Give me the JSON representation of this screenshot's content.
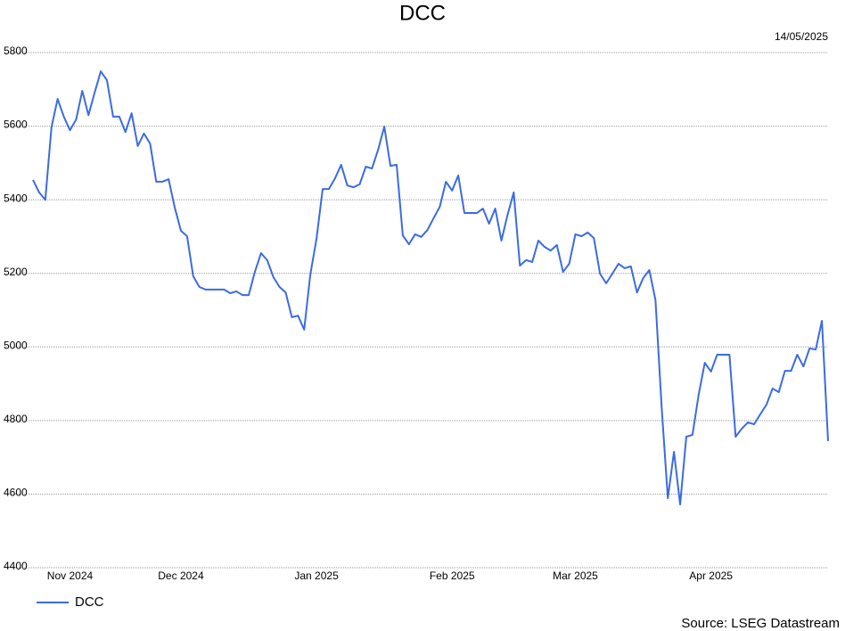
{
  "chart_data": {
    "type": "line",
    "title": "DCC",
    "date": "14/05/2025",
    "source": "Source: LSEG Datastream",
    "categories": [
      null,
      null,
      null,
      null,
      null,
      null,
      "Nov 2024",
      null,
      null,
      null,
      null,
      null,
      null,
      null,
      null,
      null,
      null,
      null,
      null,
      null,
      null,
      null,
      null,
      null,
      "Dec 2024",
      null,
      null,
      null,
      null,
      null,
      null,
      null,
      null,
      null,
      null,
      null,
      null,
      null,
      null,
      null,
      null,
      null,
      null,
      null,
      null,
      null,
      "Jan 2025",
      null,
      null,
      null,
      null,
      null,
      null,
      null,
      null,
      null,
      null,
      null,
      null,
      null,
      null,
      null,
      null,
      null,
      null,
      null,
      null,
      null,
      "Feb 2025",
      null,
      null,
      null,
      null,
      null,
      null,
      null,
      null,
      null,
      null,
      null,
      null,
      null,
      null,
      null,
      null,
      null,
      null,
      null,
      "Mar 2025",
      null,
      null,
      null,
      null,
      null,
      null,
      null,
      null,
      null,
      null,
      null,
      null,
      null,
      null,
      null,
      null,
      null,
      null,
      null,
      null,
      null,
      "Apr 2025",
      null,
      null,
      null,
      null,
      null,
      null,
      null,
      null,
      null,
      null,
      null,
      null,
      null,
      null,
      null,
      null,
      null,
      null,
      null
    ],
    "series": [
      {
        "name": "DCC",
        "color": "#3b6be3",
        "values": [
          5454,
          5420,
          5400,
          5597,
          5674,
          5626,
          5589,
          5618,
          5696,
          5630,
          5691,
          5749,
          5725,
          5626,
          5626,
          5584,
          5635,
          5546,
          5580,
          5553,
          5449,
          5449,
          5456,
          5379,
          5316,
          5301,
          5192,
          5163,
          5156,
          5156,
          5156,
          5156,
          5146,
          5151,
          5141,
          5141,
          5204,
          5255,
          5236,
          5190,
          5163,
          5148,
          5081,
          5085,
          5047,
          5197,
          5294,
          5429,
          5429,
          5458,
          5495,
          5439,
          5434,
          5442,
          5490,
          5485,
          5536,
          5599,
          5492,
          5495,
          5303,
          5279,
          5306,
          5299,
          5318,
          5350,
          5381,
          5449,
          5425,
          5466,
          5364,
          5364,
          5364,
          5376,
          5335,
          5376,
          5289,
          5359,
          5420,
          5221,
          5236,
          5231,
          5289,
          5272,
          5262,
          5277,
          5204,
          5226,
          5306,
          5301,
          5311,
          5296,
          5199,
          5173,
          5199,
          5226,
          5214,
          5219,
          5148,
          5187,
          5209,
          5127,
          4836,
          4589,
          4715,
          4572,
          4756,
          4761,
          4870,
          4957,
          4933,
          4979,
          4979,
          4979,
          4756,
          4778,
          4795,
          4790,
          4817,
          4843,
          4887,
          4877,
          4935,
          4935,
          4979,
          4947,
          4996,
          4993,
          5071,
          4744
        ]
      }
    ],
    "ylim": [
      4400,
      5800
    ],
    "yticks": [
      4400,
      4600,
      4800,
      5000,
      5200,
      5400,
      5600,
      5800
    ],
    "grid": true,
    "legend": "bottom-left"
  }
}
